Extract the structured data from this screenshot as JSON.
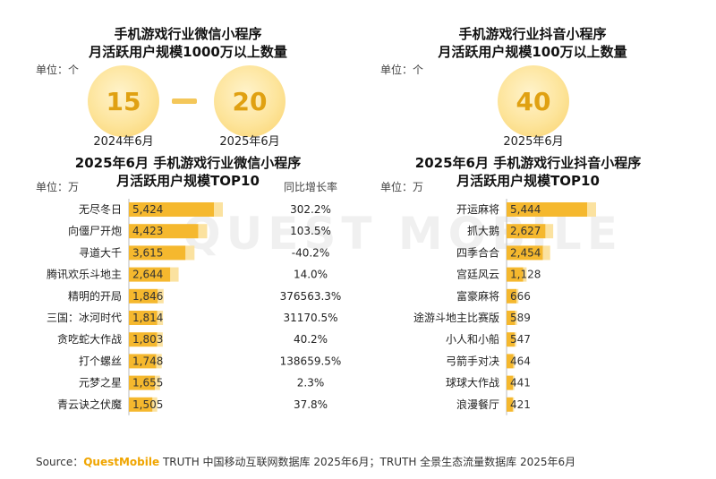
{
  "watermark": "QUEST MOBILE",
  "top_left": {
    "title_line1": "手机游戏行业微信小程序",
    "title_line2": "月活跃用户规模1000万以上数量",
    "unit": "单位：个",
    "circles": [
      {
        "value": "15",
        "label": "2024年6月"
      },
      {
        "value": "20",
        "label": "2025年6月"
      }
    ]
  },
  "top_right": {
    "title_line1": "手机游戏行业抖音小程序",
    "title_line2": "月活跃用户规模100万以上数量",
    "unit": "单位：个",
    "circles": [
      {
        "value": "40",
        "label": "2025年6月"
      }
    ]
  },
  "footer": {
    "prefix": "Source：",
    "brand": "QuestMobile",
    "rest": " TRUTH 中国移动互联网数据库 2025年6月；TRUTH 全景生态流量数据库 2025年6月"
  },
  "colors": {
    "bar": "#f5b82e",
    "bar_light": "#fbe2a0",
    "circle_text": "#e0a112"
  },
  "chart_data": [
    {
      "type": "bar",
      "orientation": "horizontal",
      "title": "2025年6月 手机游戏行业微信小程序\n月活跃用户规模TOP10",
      "unit": "单位：万",
      "growth_header": "同比增长率",
      "categories": [
        "无尽冬日",
        "向僵尸开炮",
        "寻道大千",
        "腾讯欢乐斗地主",
        "精明的开局",
        "三国：冰河时代",
        "贪吃蛇大作战",
        "打个螺丝",
        "元梦之星",
        "青云诀之伏魔"
      ],
      "values": [
        5424,
        4423,
        3615,
        2644,
        1846,
        1814,
        1803,
        1748,
        1655,
        1505
      ],
      "value_labels": [
        "5,424",
        "4,423",
        "3,615",
        "2,644",
        "1,846",
        "1,814",
        "1,803",
        "1,748",
        "1,655",
        "1,505"
      ],
      "growth": [
        "302.2%",
        "103.5%",
        "-40.2%",
        "14.0%",
        "376563.3%",
        "31170.5%",
        "40.2%",
        "138659.5%",
        "2.3%",
        "37.8%"
      ]
    },
    {
      "type": "bar",
      "orientation": "horizontal",
      "title": "2025年6月 手机游戏行业抖音小程序\n月活跃用户规模TOP10",
      "unit": "单位：万",
      "categories": [
        "开运麻将",
        "抓大鹅",
        "四季合合",
        "宫廷风云",
        "富豪麻将",
        "途游斗地主比赛版",
        "小人和小船",
        "弓箭手对决",
        "球球大作战",
        "浪漫餐厅"
      ],
      "values": [
        5444,
        2627,
        2454,
        1128,
        666,
        589,
        547,
        464,
        441,
        421
      ],
      "value_labels": [
        "5,444",
        "2,627",
        "2,454",
        "1,128",
        "666",
        "589",
        "547",
        "464",
        "441",
        "421"
      ]
    }
  ]
}
